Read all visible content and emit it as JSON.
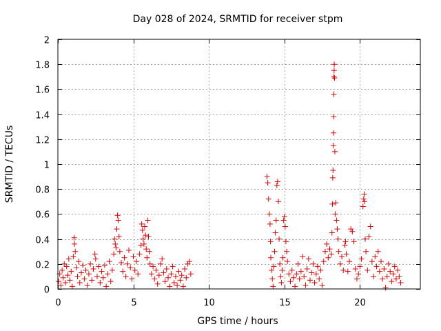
{
  "chart_data": {
    "type": "scatter",
    "title": "Day 028 of 2024, SRMTID for receiver stpm",
    "xlabel": "GPS time / hours",
    "ylabel": "SRMTID / TECUs",
    "xlim": [
      0,
      24
    ],
    "ylim": [
      0,
      2
    ],
    "xticks": [
      0,
      5,
      10,
      15,
      20
    ],
    "xtick_labels": [
      "0",
      "5",
      "10",
      "15",
      "20"
    ],
    "yticks": [
      0,
      0.2,
      0.4,
      0.6,
      0.8,
      1,
      1.2,
      1.4,
      1.6,
      1.8,
      2
    ],
    "ytick_labels": [
      "0",
      "0.2",
      "0.4",
      "0.6",
      "0.8",
      "1",
      "1.2",
      "1.4",
      "1.6",
      "1.8",
      "2"
    ],
    "grid": true,
    "marker": "plus",
    "marker_color": "#dd0000",
    "series": [
      {
        "name": "SRMTID",
        "points": [
          [
            0.05,
            0.06
          ],
          [
            0.12,
            0.12
          ],
          [
            0.2,
            0.03
          ],
          [
            0.28,
            0.15
          ],
          [
            0.35,
            0.09
          ],
          [
            0.42,
            0.2
          ],
          [
            0.5,
            0.05
          ],
          [
            0.58,
            0.18
          ],
          [
            0.65,
            0.11
          ],
          [
            0.72,
            0.24
          ],
          [
            0.8,
            0.07
          ],
          [
            0.88,
            0.14
          ],
          [
            0.95,
            0.02
          ],
          [
            1.02,
            0.26
          ],
          [
            1.08,
            0.41
          ],
          [
            1.1,
            0.36
          ],
          [
            1.15,
            0.3
          ],
          [
            1.22,
            0.17
          ],
          [
            1.3,
            0.1
          ],
          [
            1.38,
            0.22
          ],
          [
            1.45,
            0.05
          ],
          [
            1.55,
            0.13
          ],
          [
            1.65,
            0.19
          ],
          [
            1.75,
            0.08
          ],
          [
            1.85,
            0.15
          ],
          [
            1.95,
            0.03
          ],
          [
            2.05,
            0.12
          ],
          [
            2.15,
            0.2
          ],
          [
            2.25,
            0.07
          ],
          [
            2.35,
            0.16
          ],
          [
            2.45,
            0.28
          ],
          [
            2.5,
            0.24
          ],
          [
            2.6,
            0.1
          ],
          [
            2.7,
            0.18
          ],
          [
            2.8,
            0.05
          ],
          [
            2.9,
            0.14
          ],
          [
            3.0,
            0.09
          ],
          [
            3.1,
            0.19
          ],
          [
            3.2,
            0.02
          ],
          [
            3.3,
            0.12
          ],
          [
            3.4,
            0.22
          ],
          [
            3.5,
            0.06
          ],
          [
            3.6,
            0.15
          ],
          [
            3.7,
            0.28
          ],
          [
            3.75,
            0.4
          ],
          [
            3.8,
            0.36
          ],
          [
            3.85,
            0.33
          ],
          [
            3.9,
            0.48
          ],
          [
            3.95,
            0.59
          ],
          [
            4.0,
            0.55
          ],
          [
            4.05,
            0.42
          ],
          [
            4.1,
            0.3
          ],
          [
            4.2,
            0.21
          ],
          [
            4.3,
            0.14
          ],
          [
            4.4,
            0.25
          ],
          [
            4.5,
            0.1
          ],
          [
            4.6,
            0.2
          ],
          [
            4.7,
            0.31
          ],
          [
            4.8,
            0.17
          ],
          [
            4.9,
            0.08
          ],
          [
            5.0,
            0.26
          ],
          [
            5.1,
            0.15
          ],
          [
            5.2,
            0.22
          ],
          [
            5.3,
            0.12
          ],
          [
            5.4,
            0.28
          ],
          [
            5.5,
            0.35
          ],
          [
            5.55,
            0.52
          ],
          [
            5.6,
            0.47
          ],
          [
            5.65,
            0.4
          ],
          [
            5.7,
            0.36
          ],
          [
            5.75,
            0.5
          ],
          [
            5.8,
            0.43
          ],
          [
            5.85,
            0.32
          ],
          [
            5.9,
            0.25
          ],
          [
            5.95,
            0.55
          ],
          [
            6.0,
            0.42
          ],
          [
            6.05,
            0.3
          ],
          [
            6.1,
            0.2
          ],
          [
            6.2,
            0.12
          ],
          [
            6.3,
            0.18
          ],
          [
            6.4,
            0.08
          ],
          [
            6.5,
            0.15
          ],
          [
            6.6,
            0.04
          ],
          [
            6.7,
            0.11
          ],
          [
            6.8,
            0.2
          ],
          [
            6.9,
            0.24
          ],
          [
            7.0,
            0.13
          ],
          [
            7.1,
            0.06
          ],
          [
            7.2,
            0.16
          ],
          [
            7.3,
            0.09
          ],
          [
            7.4,
            0.02
          ],
          [
            7.5,
            0.12
          ],
          [
            7.6,
            0.18
          ],
          [
            7.7,
            0.05
          ],
          [
            7.8,
            0.1
          ],
          [
            7.9,
            0.03
          ],
          [
            8.0,
            0.14
          ],
          [
            8.1,
            0.07
          ],
          [
            8.2,
            0.11
          ],
          [
            8.3,
            0.02
          ],
          [
            8.4,
            0.16
          ],
          [
            8.5,
            0.09
          ],
          [
            8.6,
            0.2
          ],
          [
            8.7,
            0.22
          ],
          [
            8.8,
            0.12
          ],
          [
            13.85,
            0.9
          ],
          [
            13.9,
            0.85
          ],
          [
            13.95,
            0.72
          ],
          [
            14.0,
            0.6
          ],
          [
            14.05,
            0.52
          ],
          [
            14.08,
            0.38
          ],
          [
            14.1,
            0.25
          ],
          [
            14.15,
            0.15
          ],
          [
            14.2,
            0.08
          ],
          [
            14.25,
            0.02
          ],
          [
            14.3,
            0.18
          ],
          [
            14.35,
            0.3
          ],
          [
            14.4,
            0.45
          ],
          [
            14.45,
            0.55
          ],
          [
            14.5,
            0.83
          ],
          [
            14.55,
            0.86
          ],
          [
            14.6,
            0.7
          ],
          [
            14.65,
            0.4
          ],
          [
            14.7,
            0.2
          ],
          [
            14.75,
            0.1
          ],
          [
            14.8,
            0.05
          ],
          [
            14.85,
            0.15
          ],
          [
            14.9,
            0.25
          ],
          [
            14.95,
            0.55
          ],
          [
            15.0,
            0.58
          ],
          [
            15.05,
            0.5
          ],
          [
            15.1,
            0.38
          ],
          [
            15.15,
            0.3
          ],
          [
            15.2,
            0.22
          ],
          [
            15.3,
            0.12
          ],
          [
            15.4,
            0.06
          ],
          [
            15.5,
            0.15
          ],
          [
            15.6,
            0.09
          ],
          [
            15.7,
            0.02
          ],
          [
            15.8,
            0.12
          ],
          [
            15.9,
            0.2
          ],
          [
            16.0,
            0.08
          ],
          [
            16.1,
            0.14
          ],
          [
            16.2,
            0.26
          ],
          [
            16.3,
            0.1
          ],
          [
            16.4,
            0.03
          ],
          [
            16.5,
            0.16
          ],
          [
            16.6,
            0.24
          ],
          [
            16.7,
            0.07
          ],
          [
            16.8,
            0.13
          ],
          [
            16.9,
            0.2
          ],
          [
            17.0,
            0.05
          ],
          [
            17.1,
            0.12
          ],
          [
            17.2,
            0.18
          ],
          [
            17.3,
            0.08
          ],
          [
            17.4,
            0.15
          ],
          [
            17.5,
            0.03
          ],
          [
            17.6,
            0.22
          ],
          [
            17.7,
            0.3
          ],
          [
            17.8,
            0.36
          ],
          [
            17.9,
            0.25
          ],
          [
            18.0,
            0.32
          ],
          [
            18.1,
            0.28
          ],
          [
            18.15,
            0.45
          ],
          [
            18.18,
            0.68
          ],
          [
            18.2,
            0.89
          ],
          [
            18.22,
            0.95
          ],
          [
            18.24,
            1.15
          ],
          [
            18.25,
            1.25
          ],
          [
            18.26,
            1.38
          ],
          [
            18.27,
            1.56
          ],
          [
            18.28,
            1.7
          ],
          [
            18.29,
            1.75
          ],
          [
            18.3,
            1.8
          ],
          [
            18.32,
            1.69
          ],
          [
            18.34,
            1.1
          ],
          [
            18.36,
            0.6
          ],
          [
            18.4,
            0.69
          ],
          [
            18.45,
            0.55
          ],
          [
            18.5,
            0.48
          ],
          [
            18.55,
            0.4
          ],
          [
            18.6,
            0.3
          ],
          [
            18.7,
            0.2
          ],
          [
            18.8,
            0.26
          ],
          [
            18.9,
            0.15
          ],
          [
            19.0,
            0.35
          ],
          [
            19.05,
            0.38
          ],
          [
            19.1,
            0.28
          ],
          [
            19.2,
            0.14
          ],
          [
            19.3,
            0.22
          ],
          [
            19.4,
            0.48
          ],
          [
            19.5,
            0.46
          ],
          [
            19.6,
            0.38
          ],
          [
            19.7,
            0.16
          ],
          [
            19.8,
            0.08
          ],
          [
            19.9,
            0.12
          ],
          [
            20.0,
            0.18
          ],
          [
            20.1,
            0.24
          ],
          [
            20.2,
            0.66
          ],
          [
            20.25,
            0.72
          ],
          [
            20.28,
            0.76
          ],
          [
            20.3,
            0.7
          ],
          [
            20.35,
            0.4
          ],
          [
            20.4,
            0.3
          ],
          [
            20.5,
            0.15
          ],
          [
            20.6,
            0.42
          ],
          [
            20.7,
            0.5
          ],
          [
            20.8,
            0.22
          ],
          [
            20.9,
            0.1
          ],
          [
            21.0,
            0.26
          ],
          [
            21.1,
            0.18
          ],
          [
            21.2,
            0.3
          ],
          [
            21.3,
            0.14
          ],
          [
            21.4,
            0.22
          ],
          [
            21.5,
            0.08
          ],
          [
            21.6,
            0.16
          ],
          [
            21.7,
            0.01
          ],
          [
            21.8,
            0.1
          ],
          [
            21.9,
            0.2
          ],
          [
            22.0,
            0.14
          ],
          [
            22.1,
            0.06
          ],
          [
            22.2,
            0.12
          ],
          [
            22.3,
            0.18
          ],
          [
            22.4,
            0.08
          ],
          [
            22.5,
            0.15
          ],
          [
            22.6,
            0.1
          ],
          [
            22.7,
            0.05
          ]
        ]
      }
    ]
  }
}
